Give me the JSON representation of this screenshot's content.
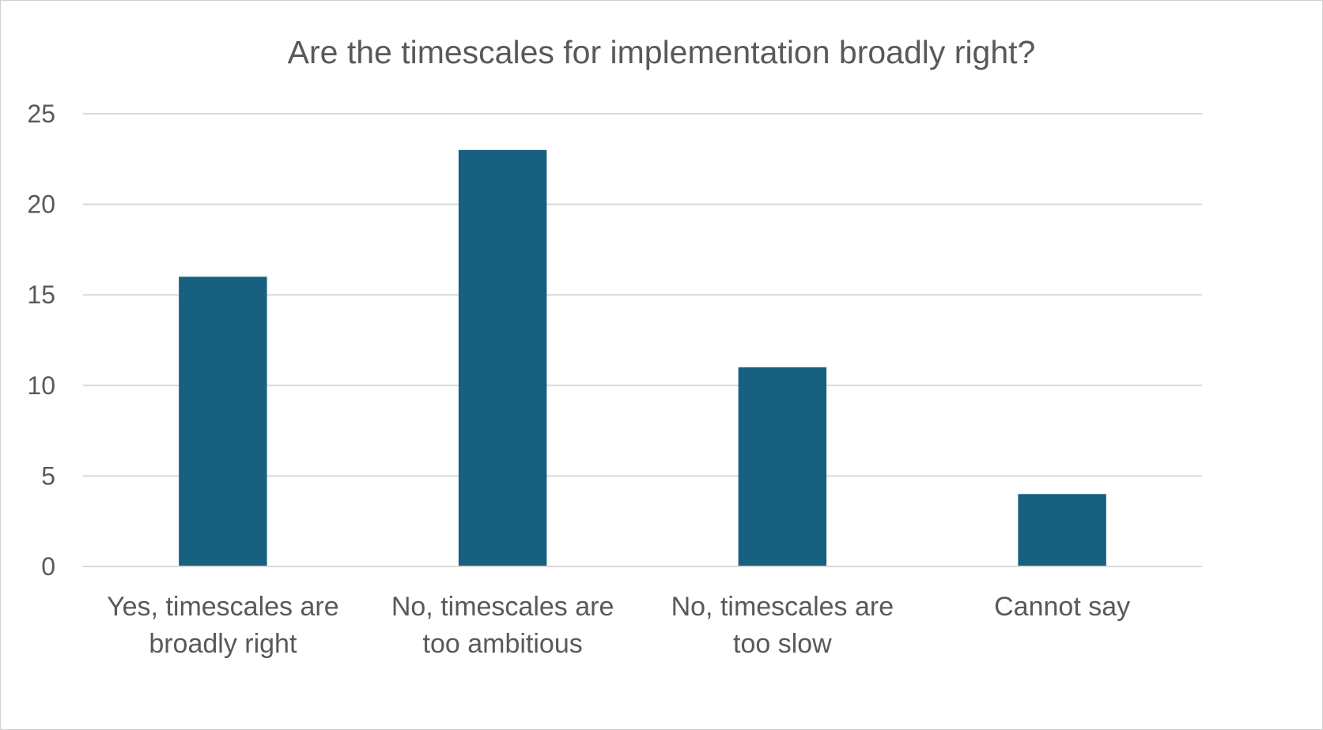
{
  "colors": {
    "bar": "#17607f",
    "grid": "#d9d9d9",
    "text": "#595959",
    "border": "#d0d0d0"
  },
  "chart_data": {
    "type": "bar",
    "title": "Are the timescales for implementation broadly right?",
    "xlabel": "",
    "ylabel": "",
    "categories": [
      [
        "Yes, timescales are",
        "broadly right"
      ],
      [
        "No, timescales are",
        "too ambitious"
      ],
      [
        "No, timescales are",
        "too slow"
      ],
      [
        "Cannot say"
      ]
    ],
    "values": [
      16,
      23,
      11,
      4
    ],
    "ylim": [
      0,
      25
    ],
    "yticks": [
      0,
      5,
      10,
      15,
      20,
      25
    ],
    "grid": true,
    "legend": "none"
  }
}
